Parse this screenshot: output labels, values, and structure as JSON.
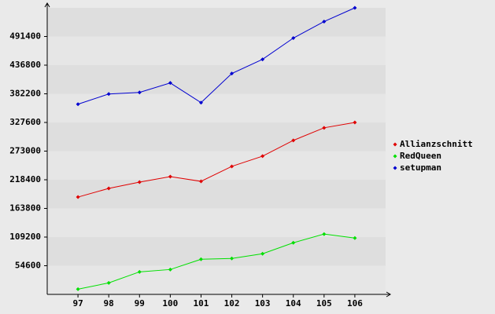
{
  "chart_data": {
    "type": "line",
    "categories": [
      "97",
      "98",
      "99",
      "100",
      "101",
      "102",
      "103",
      "104",
      "105",
      "106"
    ],
    "series": [
      {
        "name": "Allianzschnitt",
        "color": "#e00000",
        "values": [
          185400,
          201900,
          213900,
          224400,
          215400,
          243900,
          263400,
          293400,
          317400,
          327600
        ]
      },
      {
        "name": "RedQueen",
        "color": "#00e000",
        "values": [
          9900,
          21900,
          42900,
          47400,
          66900,
          68400,
          77400,
          98400,
          114900,
          107400
        ]
      },
      {
        "name": "setupman",
        "color": "#0000d0",
        "values": [
          362400,
          381900,
          384900,
          402900,
          365400,
          420900,
          447900,
          488400,
          519900,
          546000
        ]
      }
    ],
    "ylim": [
      0,
      546000
    ],
    "yticks": [
      54600,
      109200,
      163800,
      218400,
      273000,
      327600,
      382200,
      436800,
      491400
    ],
    "grid": true
  }
}
